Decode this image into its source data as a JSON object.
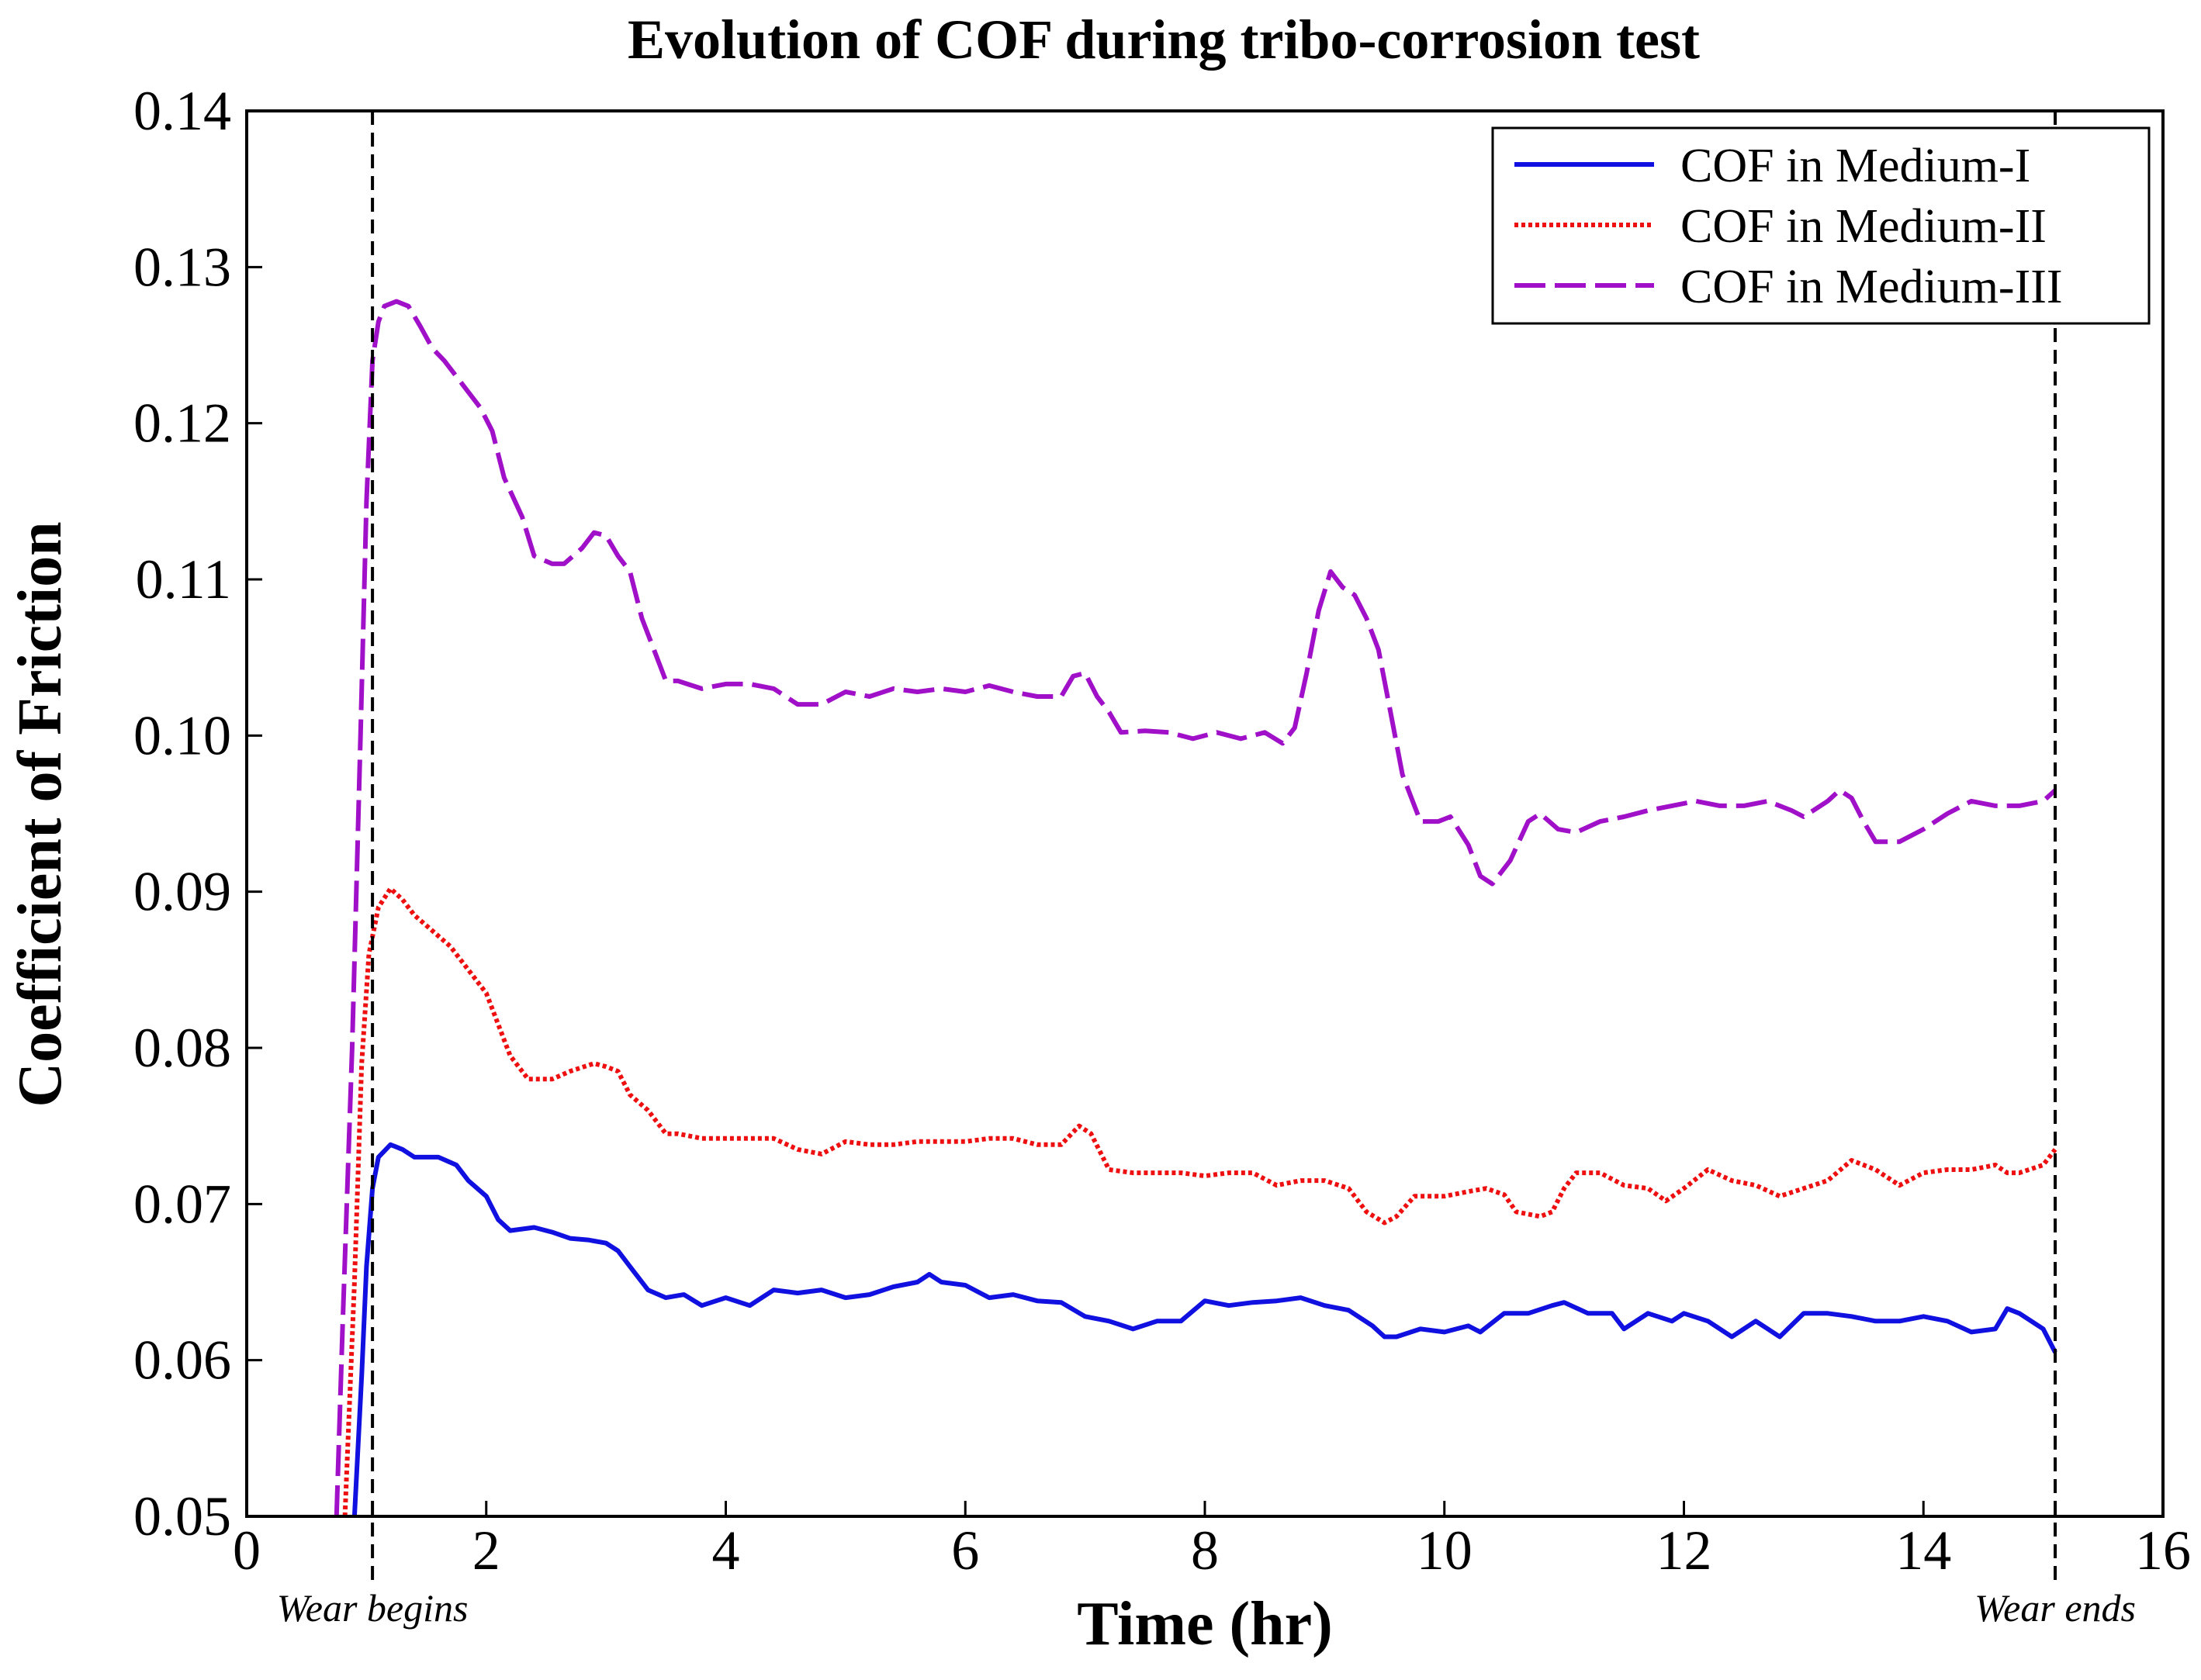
{
  "chart_data": {
    "type": "line",
    "title": "Evolution of COF during tribo-corrosion test",
    "xlabel": "Time (hr)",
    "ylabel": "Coefficient of Friction",
    "xlim": [
      0,
      16
    ],
    "ylim": [
      0.05,
      0.14
    ],
    "xticks": [
      0,
      2,
      4,
      6,
      8,
      10,
      12,
      14,
      16
    ],
    "xtick_labels": [
      "0",
      "2",
      "4",
      "6",
      "8",
      "10",
      "12",
      "14",
      "16"
    ],
    "yticks": [
      0.05,
      0.06,
      0.07,
      0.08,
      0.09,
      0.1,
      0.11,
      0.12,
      0.13,
      0.14
    ],
    "ytick_labels": [
      "0.05",
      "0.06",
      "0.07",
      "0.08",
      "0.09",
      "0.10",
      "0.11",
      "0.12",
      "0.13",
      "0.14"
    ],
    "grid": false,
    "legend_position": "top-right",
    "series": [
      {
        "name": "COF in Medium-I",
        "color": "#1010e0",
        "style": "solid",
        "x": [
          0.9,
          0.96,
          1.0,
          1.05,
          1.1,
          1.2,
          1.3,
          1.4,
          1.6,
          1.75,
          1.85,
          2.0,
          2.1,
          2.2,
          2.4,
          2.55,
          2.7,
          2.85,
          3.0,
          3.1,
          3.2,
          3.35,
          3.5,
          3.65,
          3.8,
          4.0,
          4.2,
          4.4,
          4.6,
          4.8,
          5.0,
          5.2,
          5.4,
          5.6,
          5.7,
          5.8,
          6.0,
          6.2,
          6.4,
          6.6,
          6.8,
          7.0,
          7.2,
          7.4,
          7.6,
          7.8,
          8.0,
          8.2,
          8.4,
          8.6,
          8.8,
          9.0,
          9.2,
          9.4,
          9.5,
          9.6,
          9.8,
          10.0,
          10.2,
          10.3,
          10.5,
          10.7,
          10.9,
          11.0,
          11.2,
          11.4,
          11.5,
          11.7,
          11.9,
          12.0,
          12.2,
          12.4,
          12.6,
          12.7,
          12.8,
          13.0,
          13.2,
          13.4,
          13.6,
          13.8,
          14.0,
          14.2,
          14.4,
          14.6,
          14.7,
          14.8,
          15.0,
          15.1
        ],
        "values": [
          0.05,
          0.059,
          0.066,
          0.071,
          0.073,
          0.0738,
          0.0735,
          0.073,
          0.073,
          0.0725,
          0.0715,
          0.0705,
          0.069,
          0.0683,
          0.0685,
          0.0682,
          0.0678,
          0.0677,
          0.0675,
          0.067,
          0.066,
          0.0645,
          0.064,
          0.0642,
          0.0635,
          0.064,
          0.0635,
          0.0645,
          0.0643,
          0.0645,
          0.064,
          0.0642,
          0.0647,
          0.065,
          0.0655,
          0.065,
          0.0648,
          0.064,
          0.0642,
          0.0638,
          0.0637,
          0.0628,
          0.0625,
          0.062,
          0.0625,
          0.0625,
          0.0638,
          0.0635,
          0.0637,
          0.0638,
          0.064,
          0.0635,
          0.0632,
          0.0622,
          0.0615,
          0.0615,
          0.062,
          0.0618,
          0.0622,
          0.0618,
          0.063,
          0.063,
          0.0635,
          0.0637,
          0.063,
          0.063,
          0.062,
          0.063,
          0.0625,
          0.063,
          0.0625,
          0.0615,
          0.0625,
          0.062,
          0.0615,
          0.063,
          0.063,
          0.0628,
          0.0625,
          0.0625,
          0.0628,
          0.0625,
          0.0618,
          0.062,
          0.0633,
          0.063,
          0.062,
          0.0605
        ]
      },
      {
        "name": "COF in Medium-II",
        "color": "#ee1010",
        "style": "dotted",
        "x": [
          0.82,
          0.9,
          0.96,
          1.02,
          1.1,
          1.2,
          1.3,
          1.4,
          1.55,
          1.7,
          1.85,
          2.0,
          2.1,
          2.2,
          2.35,
          2.55,
          2.7,
          2.9,
          3.0,
          3.1,
          3.2,
          3.35,
          3.5,
          3.6,
          3.8,
          4.0,
          4.2,
          4.4,
          4.6,
          4.8,
          5.0,
          5.2,
          5.4,
          5.6,
          5.8,
          6.0,
          6.2,
          6.4,
          6.6,
          6.8,
          6.95,
          7.05,
          7.2,
          7.4,
          7.6,
          7.8,
          8.0,
          8.2,
          8.4,
          8.6,
          8.8,
          9.0,
          9.2,
          9.35,
          9.5,
          9.6,
          9.75,
          10.0,
          10.2,
          10.35,
          10.5,
          10.6,
          10.8,
          10.9,
          11.0,
          11.1,
          11.3,
          11.5,
          11.7,
          11.85,
          12.0,
          12.2,
          12.4,
          12.6,
          12.8,
          13.0,
          13.2,
          13.4,
          13.6,
          13.8,
          14.0,
          14.2,
          14.4,
          14.6,
          14.7,
          14.8,
          15.0,
          15.1
        ],
        "values": [
          0.05,
          0.065,
          0.079,
          0.086,
          0.089,
          0.0902,
          0.0895,
          0.0885,
          0.0875,
          0.0865,
          0.085,
          0.0835,
          0.0815,
          0.0795,
          0.078,
          0.078,
          0.0785,
          0.079,
          0.0788,
          0.0785,
          0.077,
          0.076,
          0.0745,
          0.0745,
          0.0742,
          0.0742,
          0.0742,
          0.0742,
          0.0735,
          0.0732,
          0.074,
          0.0738,
          0.0738,
          0.074,
          0.074,
          0.074,
          0.0742,
          0.0742,
          0.0738,
          0.0738,
          0.075,
          0.0745,
          0.0722,
          0.072,
          0.072,
          0.072,
          0.0718,
          0.072,
          0.072,
          0.0712,
          0.0715,
          0.0715,
          0.071,
          0.0695,
          0.0688,
          0.0692,
          0.0705,
          0.0705,
          0.0708,
          0.071,
          0.0706,
          0.0695,
          0.0692,
          0.0695,
          0.071,
          0.072,
          0.072,
          0.0712,
          0.071,
          0.0702,
          0.071,
          0.0722,
          0.0715,
          0.0712,
          0.0705,
          0.071,
          0.0715,
          0.0728,
          0.0722,
          0.0712,
          0.072,
          0.0722,
          0.0722,
          0.0725,
          0.072,
          0.072,
          0.0725,
          0.0735
        ]
      },
      {
        "name": "COF in Medium-III",
        "color": "#a010c8",
        "style": "dashed",
        "x": [
          0.75,
          0.8,
          0.88,
          0.95,
          1.0,
          1.05,
          1.1,
          1.15,
          1.25,
          1.35,
          1.45,
          1.55,
          1.65,
          1.8,
          1.95,
          2.05,
          2.15,
          2.3,
          2.4,
          2.55,
          2.65,
          2.8,
          2.9,
          3.0,
          3.1,
          3.2,
          3.3,
          3.4,
          3.5,
          3.6,
          3.8,
          4.0,
          4.2,
          4.4,
          4.6,
          4.8,
          5.0,
          5.2,
          5.4,
          5.6,
          5.8,
          6.0,
          6.2,
          6.4,
          6.6,
          6.8,
          6.9,
          7.0,
          7.1,
          7.2,
          7.3,
          7.5,
          7.7,
          7.9,
          8.1,
          8.3,
          8.5,
          8.65,
          8.75,
          8.85,
          8.95,
          9.05,
          9.15,
          9.25,
          9.35,
          9.45,
          9.55,
          9.65,
          9.8,
          9.95,
          10.05,
          10.2,
          10.3,
          10.4,
          10.55,
          10.7,
          10.8,
          10.95,
          11.1,
          11.3,
          11.5,
          11.7,
          11.9,
          12.1,
          12.3,
          12.5,
          12.7,
          12.9,
          13.0,
          13.2,
          13.3,
          13.4,
          13.5,
          13.6,
          13.8,
          14.0,
          14.2,
          14.4,
          14.6,
          14.8,
          15.0,
          15.1
        ],
        "values": [
          0.05,
          0.062,
          0.08,
          0.1,
          0.115,
          0.124,
          0.1265,
          0.1275,
          0.1278,
          0.1275,
          0.1262,
          0.1248,
          0.124,
          0.1225,
          0.121,
          0.1195,
          0.1165,
          0.114,
          0.1115,
          0.111,
          0.111,
          0.112,
          0.113,
          0.1128,
          0.1115,
          0.1105,
          0.1075,
          0.1055,
          0.1035,
          0.1035,
          0.103,
          0.1033,
          0.1033,
          0.103,
          0.102,
          0.102,
          0.1028,
          0.1025,
          0.103,
          0.1028,
          0.103,
          0.1028,
          0.1032,
          0.1028,
          0.1025,
          0.1025,
          0.1038,
          0.104,
          0.1025,
          0.1015,
          0.1002,
          0.1003,
          0.1002,
          0.0998,
          0.1002,
          0.0998,
          0.1002,
          0.0995,
          0.1005,
          0.104,
          0.108,
          0.1105,
          0.1095,
          0.109,
          0.1075,
          0.1055,
          0.1015,
          0.0975,
          0.0945,
          0.0945,
          0.0948,
          0.093,
          0.091,
          0.0905,
          0.092,
          0.0945,
          0.095,
          0.094,
          0.0938,
          0.0945,
          0.0948,
          0.0952,
          0.0955,
          0.0958,
          0.0955,
          0.0955,
          0.0958,
          0.0952,
          0.0948,
          0.0958,
          0.0965,
          0.096,
          0.0945,
          0.0932,
          0.0932,
          0.094,
          0.095,
          0.0958,
          0.0955,
          0.0955,
          0.0958,
          0.0965
        ]
      }
    ],
    "annotations": [
      {
        "text": "Wear begins",
        "x": 1.05,
        "style": "vertical-dashed-line"
      },
      {
        "text": "Wear ends",
        "x": 15.1,
        "style": "vertical-dashed-line"
      }
    ]
  }
}
